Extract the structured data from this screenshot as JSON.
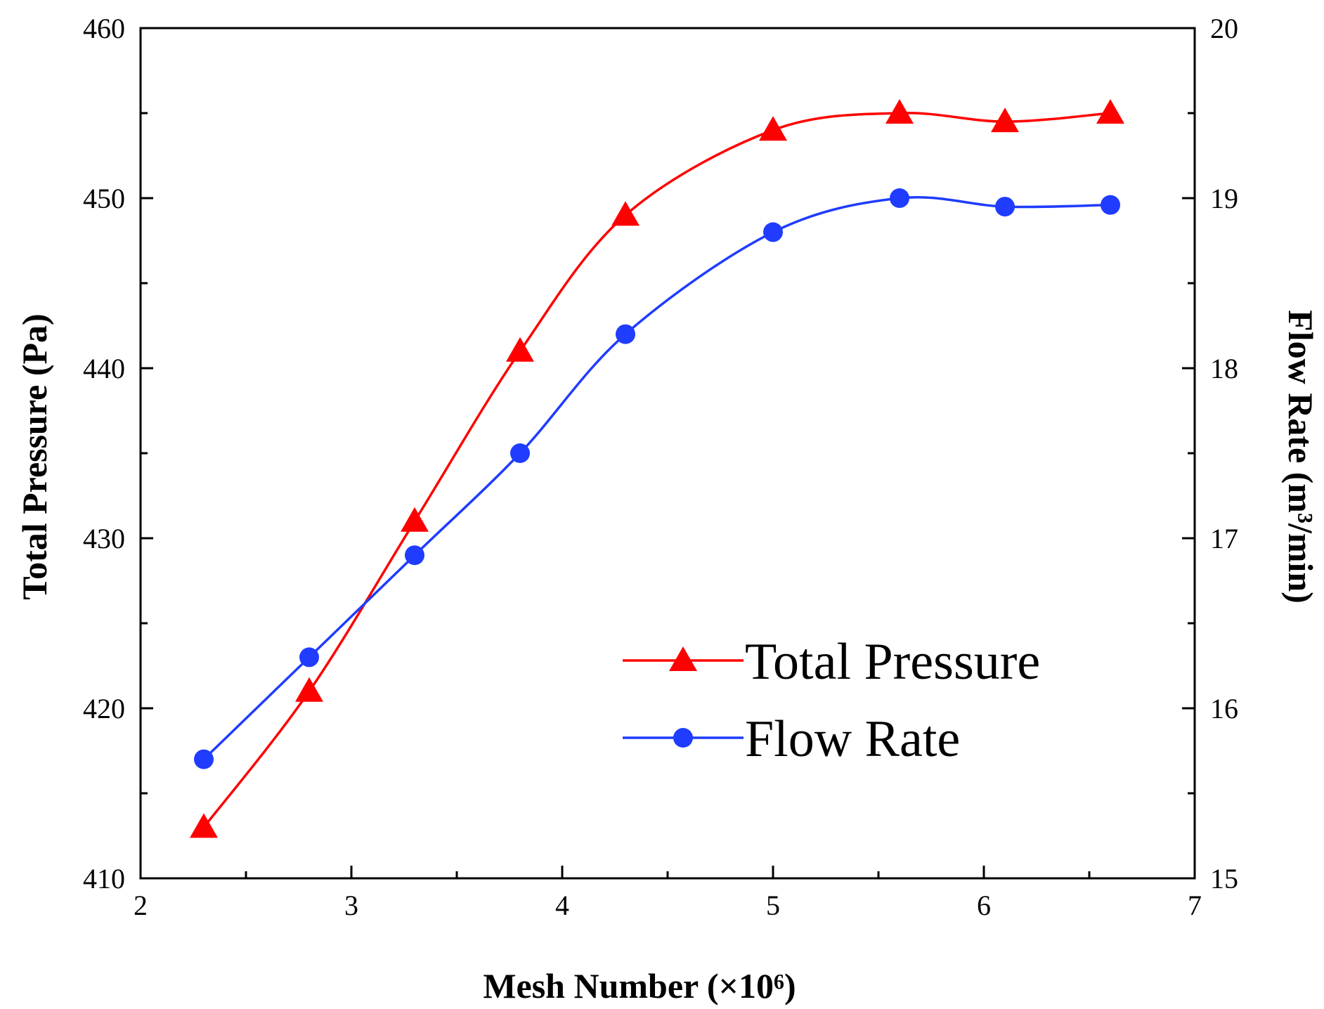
{
  "chart_data": {
    "type": "line",
    "x": [
      2.3,
      2.8,
      3.3,
      3.8,
      4.3,
      5.0,
      5.6,
      6.1,
      6.6
    ],
    "series": [
      {
        "name": "Total Pressure",
        "axis": "left",
        "color": "#ff0000",
        "marker": "triangle",
        "values": [
          413,
          421,
          431,
          441,
          449,
          454,
          455,
          454.5,
          455
        ]
      },
      {
        "name": "Flow Rate",
        "axis": "right",
        "color": "#1f3cff",
        "marker": "circle",
        "values": [
          15.7,
          16.3,
          16.9,
          17.5,
          18.2,
          18.8,
          19.0,
          18.95,
          18.96
        ]
      }
    ],
    "xlabel": "Mesh Number (×10⁶)",
    "ylabel_left": "Total Pressure (Pa)",
    "ylabel_right": "Flow Rate (m³/min)",
    "xlim": [
      2,
      7
    ],
    "ylim_left": [
      410,
      460
    ],
    "ylim_right": [
      15,
      20
    ],
    "x_ticks": [
      "2",
      "3",
      "4",
      "5",
      "6",
      "7"
    ],
    "y_left_ticks": [
      "410",
      "420",
      "430",
      "440",
      "450",
      "460"
    ],
    "y_right_ticks": [
      "15",
      "16",
      "17",
      "18",
      "19",
      "20"
    ],
    "legend_position": "center-right",
    "grid": false
  }
}
